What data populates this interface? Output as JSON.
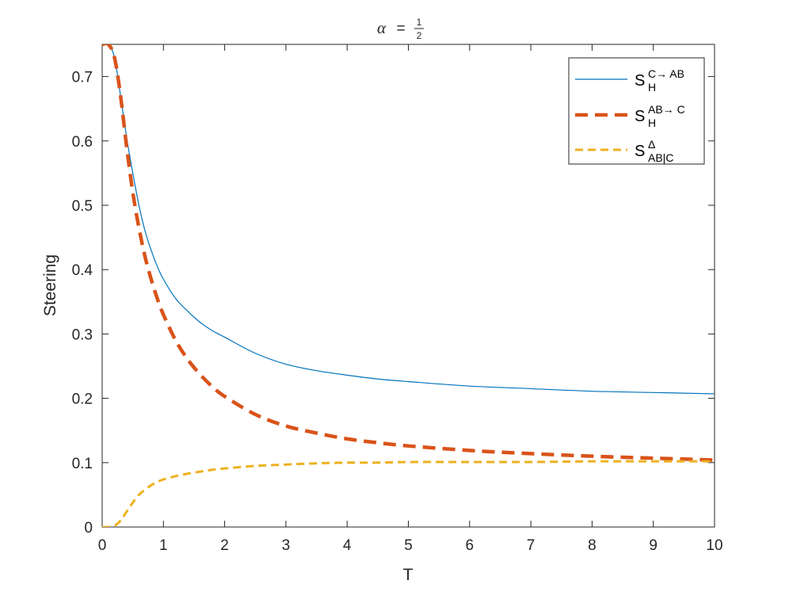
{
  "chart_data": {
    "type": "line",
    "title": {
      "symbol": "α",
      "equals": "=",
      "numerator": "1",
      "denominator": "2"
    },
    "xlabel": "T",
    "ylabel": "Steering",
    "xlim": [
      0,
      10
    ],
    "ylim": [
      0,
      0.75
    ],
    "xticks": [
      0,
      1,
      2,
      3,
      4,
      5,
      6,
      7,
      8,
      9,
      10
    ],
    "xtick_labels": [
      "0",
      "1",
      "2",
      "3",
      "4",
      "5",
      "6",
      "7",
      "8",
      "9",
      "10"
    ],
    "yticks": [
      0,
      0.1,
      0.2,
      0.3,
      0.4,
      0.5,
      0.6,
      0.7
    ],
    "ytick_labels": [
      "0",
      "0.1",
      "0.2",
      "0.3",
      "0.4",
      "0.5",
      "0.6",
      "0.7"
    ],
    "grid": false,
    "legend_position": "top-right",
    "series": [
      {
        "key": "c_to_ab",
        "legend": {
          "base": "S",
          "sub": "H",
          "sup": "C→ AB"
        },
        "color": "#0072BD",
        "style": "solid",
        "x": [
          0,
          0.1,
          0.2,
          0.3,
          0.4,
          0.5,
          0.6,
          0.7,
          0.8,
          0.9,
          1.0,
          1.2,
          1.4,
          1.6,
          1.8,
          2.0,
          2.5,
          3.0,
          3.5,
          4.0,
          4.5,
          5.0,
          6.0,
          7.0,
          8.0,
          9.0,
          10.0
        ],
        "y": [
          0.75,
          0.75,
          0.73,
          0.67,
          0.605,
          0.55,
          0.5,
          0.46,
          0.43,
          0.405,
          0.385,
          0.355,
          0.335,
          0.318,
          0.305,
          0.295,
          0.27,
          0.253,
          0.243,
          0.236,
          0.23,
          0.226,
          0.219,
          0.215,
          0.211,
          0.209,
          0.207
        ]
      },
      {
        "key": "ab_to_c",
        "legend": {
          "base": "S",
          "sub": "H",
          "sup": "AB→ C"
        },
        "color": "#D95319",
        "style": "dashed",
        "x": [
          0,
          0.1,
          0.2,
          0.3,
          0.4,
          0.5,
          0.6,
          0.7,
          0.8,
          0.9,
          1.0,
          1.2,
          1.4,
          1.6,
          1.8,
          2.0,
          2.5,
          3.0,
          3.5,
          4.0,
          4.5,
          5.0,
          6.0,
          7.0,
          8.0,
          9.0,
          10.0
        ],
        "y": [
          0.75,
          0.75,
          0.73,
          0.67,
          0.59,
          0.52,
          0.465,
          0.42,
          0.385,
          0.355,
          0.33,
          0.29,
          0.26,
          0.237,
          0.218,
          0.203,
          0.175,
          0.157,
          0.146,
          0.137,
          0.131,
          0.126,
          0.119,
          0.114,
          0.11,
          0.107,
          0.104
        ]
      },
      {
        "key": "delta",
        "legend": {
          "base": "S",
          "sub": "AB|C",
          "sup": "Δ"
        },
        "color": "#EDB120",
        "style": "dashed",
        "x": [
          0,
          0.1,
          0.2,
          0.3,
          0.4,
          0.5,
          0.6,
          0.7,
          0.8,
          0.9,
          1.0,
          1.2,
          1.4,
          1.6,
          1.8,
          2.0,
          2.5,
          3.0,
          3.5,
          4.0,
          4.5,
          5.0,
          6.0,
          7.0,
          8.0,
          9.0,
          10.0
        ],
        "y": [
          0,
          0,
          0.002,
          0.01,
          0.024,
          0.038,
          0.05,
          0.058,
          0.065,
          0.07,
          0.074,
          0.079,
          0.083,
          0.086,
          0.089,
          0.091,
          0.095,
          0.097,
          0.099,
          0.1,
          0.1,
          0.101,
          0.101,
          0.101,
          0.102,
          0.102,
          0.102
        ]
      }
    ]
  }
}
